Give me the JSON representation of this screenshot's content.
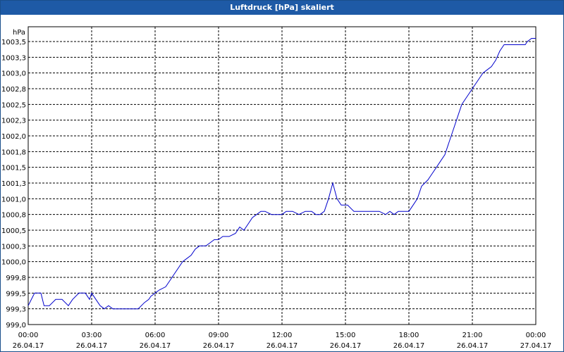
{
  "window": {
    "title": "Luftdruck [hPa] skaliert"
  },
  "colors": {
    "titlebar": "#1e5aa6",
    "line": "#0000cc",
    "grid": "#000000"
  },
  "chart_data": {
    "type": "line",
    "title": "Luftdruck [hPa] skaliert",
    "ylabel": "hPa",
    "xlabel": "",
    "grid": true,
    "ylim": [
      999.0,
      1003.5
    ],
    "xlim_hours": [
      0,
      24
    ],
    "y_ticks": [
      "999,0",
      "999,3",
      "999,5",
      "999,8",
      "1000,0",
      "1000,3",
      "1000,5",
      "1000,8",
      "1001,0",
      "1001,3",
      "1001,5",
      "1001,8",
      "1002,0",
      "1002,3",
      "1002,5",
      "1002,8",
      "1003,0",
      "1003,3",
      "1003,5"
    ],
    "x_ticks": [
      {
        "time": "00:00",
        "date": "26.04.17"
      },
      {
        "time": "03:00",
        "date": "26.04.17"
      },
      {
        "time": "06:00",
        "date": "26.04.17"
      },
      {
        "time": "09:00",
        "date": "26.04.17"
      },
      {
        "time": "12:00",
        "date": "26.04.17"
      },
      {
        "time": "15:00",
        "date": "26.04.17"
      },
      {
        "time": "18:00",
        "date": "26.04.17"
      },
      {
        "time": "21:00",
        "date": "26.04.17"
      },
      {
        "time": "00:00",
        "date": "27.04.17"
      }
    ],
    "series": [
      {
        "x": [
          0.0,
          0.3,
          0.6,
          0.75,
          1.0,
          1.3,
          1.6,
          1.9,
          2.1,
          2.4,
          2.7,
          2.9,
          3.0,
          3.2,
          3.4,
          3.6,
          3.8,
          4.0,
          4.3,
          4.6,
          4.9,
          5.2,
          5.5,
          5.7,
          5.8,
          6.0,
          6.2,
          6.5,
          6.7,
          6.9,
          7.1,
          7.3,
          7.5,
          7.7,
          7.9,
          8.1,
          8.4,
          8.6,
          8.8,
          9.0,
          9.2,
          9.5,
          9.8,
          10.0,
          10.2,
          10.4,
          10.6,
          10.8,
          11.0,
          11.2,
          11.5,
          11.8,
          12.0,
          12.2,
          12.5,
          12.8,
          13.1,
          13.4,
          13.6,
          13.8,
          14.0,
          14.2,
          14.4,
          14.6,
          14.8,
          15.1,
          15.4,
          15.7,
          16.0,
          16.3,
          16.6,
          16.9,
          17.1,
          17.3,
          17.5,
          17.8,
          18.0,
          18.2,
          18.4,
          18.6,
          18.9,
          19.1,
          19.3,
          19.5,
          19.7,
          19.9,
          20.1,
          20.3,
          20.5,
          20.7,
          20.9,
          21.1,
          21.3,
          21.5,
          21.7,
          21.9,
          22.1,
          22.3,
          22.5,
          22.8,
          23.2,
          23.5,
          23.6,
          23.8,
          24.0
        ],
        "values": [
          999.3,
          999.5,
          999.5,
          999.3,
          999.3,
          999.4,
          999.4,
          999.3,
          999.4,
          999.5,
          999.5,
          999.4,
          999.5,
          999.4,
          999.3,
          999.25,
          999.3,
          999.25,
          999.25,
          999.25,
          999.25,
          999.25,
          999.35,
          999.4,
          999.45,
          999.5,
          999.55,
          999.6,
          999.7,
          999.8,
          999.9,
          1000.0,
          1000.05,
          1000.1,
          1000.2,
          1000.25,
          1000.25,
          1000.3,
          1000.35,
          1000.35,
          1000.4,
          1000.4,
          1000.45,
          1000.55,
          1000.5,
          1000.6,
          1000.7,
          1000.75,
          1000.8,
          1000.8,
          1000.75,
          1000.75,
          1000.75,
          1000.8,
          1000.8,
          1000.75,
          1000.8,
          1000.8,
          1000.75,
          1000.75,
          1000.8,
          1001.0,
          1001.25,
          1001.0,
          1000.9,
          1000.9,
          1000.8,
          1000.8,
          1000.8,
          1000.8,
          1000.8,
          1000.75,
          1000.8,
          1000.75,
          1000.8,
          1000.8,
          1000.8,
          1000.9,
          1001.0,
          1001.2,
          1001.3,
          1001.4,
          1001.5,
          1001.6,
          1001.7,
          1001.9,
          1002.1,
          1002.3,
          1002.5,
          1002.6,
          1002.7,
          1002.8,
          1002.9,
          1003.0,
          1003.05,
          1003.1,
          1003.2,
          1003.35,
          1003.45,
          1003.45,
          1003.45,
          1003.45,
          1003.5,
          1003.55,
          1003.55
        ]
      }
    ]
  }
}
